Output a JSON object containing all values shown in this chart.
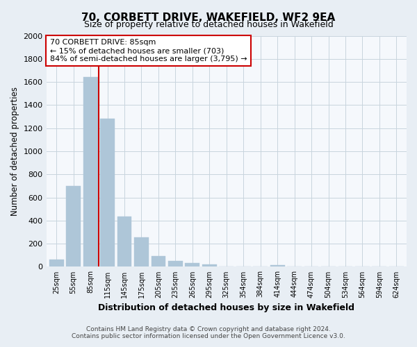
{
  "title": "70, CORBETT DRIVE, WAKEFIELD, WF2 9EA",
  "subtitle": "Size of property relative to detached houses in Wakefield",
  "xlabel": "Distribution of detached houses by size in Wakefield",
  "ylabel": "Number of detached properties",
  "categories": [
    "25sqm",
    "55sqm",
    "85sqm",
    "115sqm",
    "145sqm",
    "175sqm",
    "205sqm",
    "235sqm",
    "265sqm",
    "295sqm",
    "325sqm",
    "354sqm",
    "384sqm",
    "414sqm",
    "444sqm",
    "474sqm",
    "504sqm",
    "534sqm",
    "564sqm",
    "594sqm",
    "624sqm"
  ],
  "values": [
    65,
    700,
    1640,
    1280,
    435,
    255,
    90,
    50,
    30,
    20,
    0,
    0,
    0,
    15,
    0,
    0,
    0,
    0,
    0,
    0,
    0
  ],
  "bar_color": "#aec6d8",
  "vline_color": "#cc0000",
  "vline_x": 2.5,
  "ylim": [
    0,
    2000
  ],
  "yticks": [
    0,
    200,
    400,
    600,
    800,
    1000,
    1200,
    1400,
    1600,
    1800,
    2000
  ],
  "annotation_line1": "70 CORBETT DRIVE: 85sqm",
  "annotation_line2": "← 15% of detached houses are smaller (703)",
  "annotation_line3": "84% of semi-detached houses are larger (3,795) →",
  "annotation_box_color": "#ffffff",
  "annotation_box_edge": "#cc0000",
  "footer_line1": "Contains HM Land Registry data © Crown copyright and database right 2024.",
  "footer_line2": "Contains public sector information licensed under the Open Government Licence v3.0.",
  "bg_color": "#e8eef4",
  "plot_bg_color": "#f5f8fc"
}
